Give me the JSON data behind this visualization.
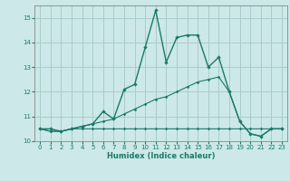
{
  "xlabel": "Humidex (Indice chaleur)",
  "background_color": "#cce8e8",
  "grid_color": "#aacccc",
  "line_color": "#1a7a6a",
  "x": [
    0,
    1,
    2,
    3,
    4,
    5,
    6,
    7,
    8,
    9,
    10,
    11,
    12,
    13,
    14,
    15,
    16,
    17,
    18,
    19,
    20,
    21,
    22,
    23
  ],
  "series1": [
    10.5,
    10.5,
    10.4,
    10.5,
    10.6,
    10.7,
    11.2,
    10.9,
    12.1,
    12.3,
    13.8,
    15.3,
    13.2,
    14.2,
    14.3,
    14.3,
    13.0,
    13.4,
    12.0,
    10.8,
    10.3,
    10.2,
    10.5,
    10.5
  ],
  "series2": [
    10.5,
    10.4,
    10.4,
    10.5,
    10.6,
    10.7,
    10.8,
    10.9,
    11.1,
    11.3,
    11.5,
    11.7,
    11.8,
    12.0,
    12.2,
    12.4,
    12.5,
    12.6,
    12.0,
    10.8,
    10.3,
    10.2,
    10.5,
    10.5
  ],
  "series3": [
    10.5,
    10.4,
    10.4,
    10.5,
    10.5,
    10.5,
    10.5,
    10.5,
    10.5,
    10.5,
    10.5,
    10.5,
    10.5,
    10.5,
    10.5,
    10.5,
    10.5,
    10.5,
    10.5,
    10.5,
    10.5,
    10.5,
    10.5,
    10.5
  ],
  "ylim": [
    10,
    15.5
  ],
  "xlim": [
    -0.5,
    23.5
  ],
  "yticks": [
    10,
    11,
    12,
    13,
    14,
    15
  ],
  "xticks": [
    0,
    1,
    2,
    3,
    4,
    5,
    6,
    7,
    8,
    9,
    10,
    11,
    12,
    13,
    14,
    15,
    16,
    17,
    18,
    19,
    20,
    21,
    22,
    23
  ]
}
